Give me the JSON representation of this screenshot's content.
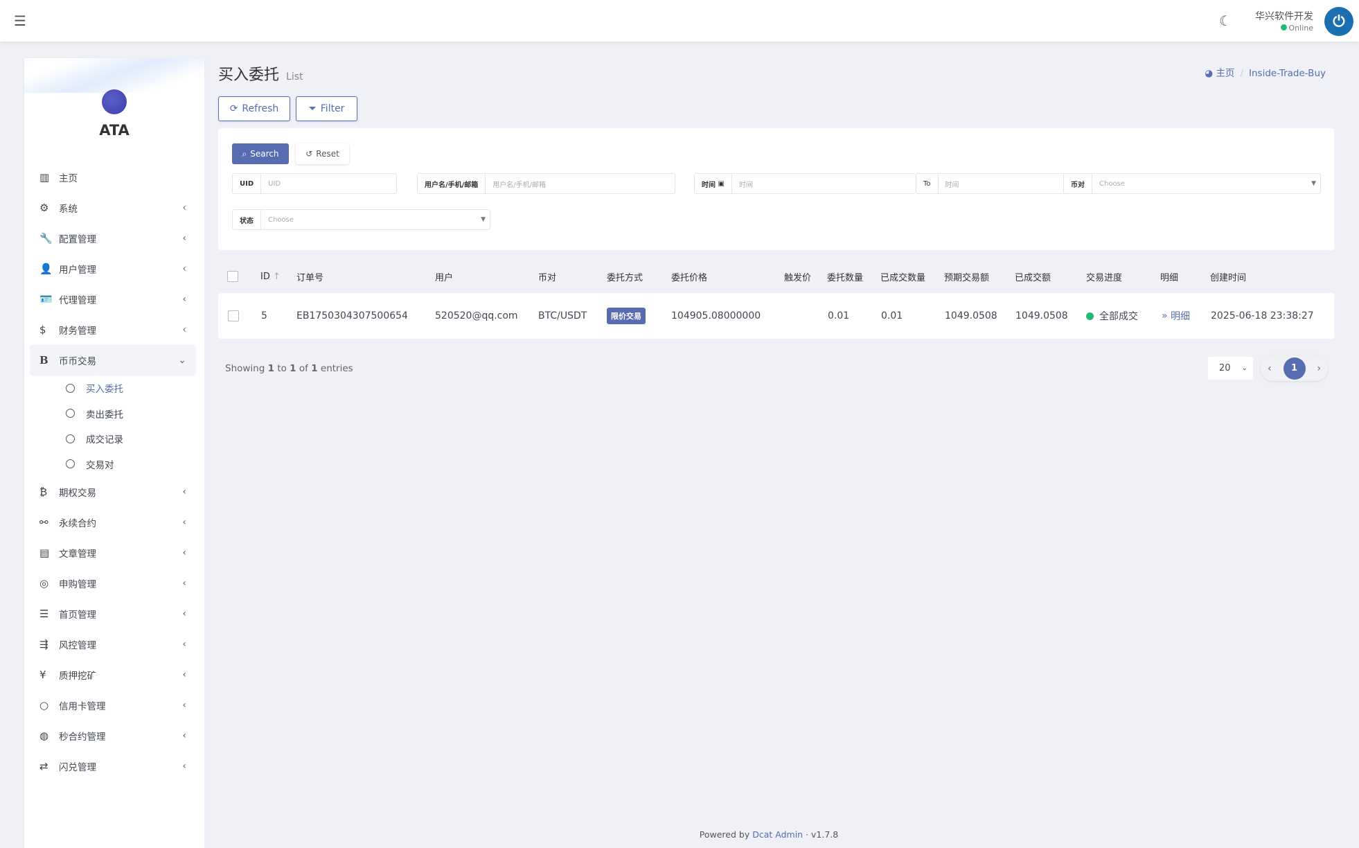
{
  "header": {
    "user_name": "华兴软件开发",
    "status": "Online",
    "menu_icon": "hamburger-icon",
    "theme_icon": "moon-icon"
  },
  "sidebar": {
    "brand": "ATA",
    "items": [
      {
        "label": "主页",
        "icon": "bar-chart-icon"
      },
      {
        "label": "系统",
        "icon": "gear-icon"
      },
      {
        "label": "配置管理",
        "icon": "wrench-icon"
      },
      {
        "label": "用户管理",
        "icon": "user-icon"
      },
      {
        "label": "代理管理",
        "icon": "id-card-icon"
      },
      {
        "label": "财务管理",
        "icon": "dollar-icon"
      },
      {
        "label": "币币交易",
        "icon": "bold-b-icon",
        "children": [
          "买入委托",
          "卖出委托",
          "成交记录",
          "交易对"
        ]
      },
      {
        "label": "期权交易",
        "icon": "bitcoin-icon"
      },
      {
        "label": "永续合约",
        "icon": "link-icon"
      },
      {
        "label": "文章管理",
        "icon": "newspaper-icon"
      },
      {
        "label": "申购管理",
        "icon": "lifebuoy-icon"
      },
      {
        "label": "首页管理",
        "icon": "list-icon"
      },
      {
        "label": "风控管理",
        "icon": "indent-icon"
      },
      {
        "label": "质押挖矿",
        "icon": "yen-icon"
      },
      {
        "label": "信用卡管理",
        "icon": "circle-icon"
      },
      {
        "label": "秒合约管理",
        "icon": "fingerprint-icon"
      },
      {
        "label": "闪兑管理",
        "icon": "exchange-icon"
      }
    ]
  },
  "page": {
    "title": "买入委托",
    "subtitle": "List",
    "breadcrumb": [
      "主页",
      "Inside-Trade-Buy"
    ],
    "refresh": "Refresh",
    "filter": "Filter"
  },
  "filter": {
    "search": "Search",
    "reset": "Reset",
    "uid": {
      "label": "UID",
      "placeholder": "UID"
    },
    "user": {
      "label": "用户名/手机/邮箱",
      "placeholder": "用户名/手机/邮箱"
    },
    "time": {
      "label": "时间",
      "placeholder": "时间",
      "to": "To",
      "placeholder2": "时间"
    },
    "pair": {
      "label": "币对",
      "placeholder": "Choose"
    },
    "status": {
      "label": "状态",
      "placeholder": "Choose"
    }
  },
  "table": {
    "columns": [
      "ID",
      "订单号",
      "用户",
      "币对",
      "委托方式",
      "委托价格",
      "触发价",
      "委托数量",
      "已成交数量",
      "预期交易额",
      "已成交额",
      "交易进度",
      "明细",
      "创建时间"
    ],
    "rows": [
      {
        "id": "5",
        "order_no": "EB1750304307500654",
        "user": "520520@qq.com",
        "pair": "BTC/USDT",
        "type": "限价交易",
        "price": "104905.08000000",
        "trigger": "",
        "qty": "0.01",
        "filled_qty": "0.01",
        "expected": "1049.0508",
        "filled_amount": "1049.0508",
        "progress": "全部成交",
        "detail": "明细",
        "created": "2025-06-18 23:38:27"
      }
    ]
  },
  "pagination": {
    "showing_prefix": "Showing",
    "from": "1",
    "to_word": "to",
    "to": "1",
    "of_word": "of",
    "total": "1",
    "suffix": "entries",
    "per_page": "20",
    "current": "1"
  },
  "footer": {
    "powered": "Powered by",
    "link": "Dcat Admin",
    "version": "v1.7.8"
  },
  "colors": {
    "accent": "#586cb1",
    "success": "#21b978"
  }
}
